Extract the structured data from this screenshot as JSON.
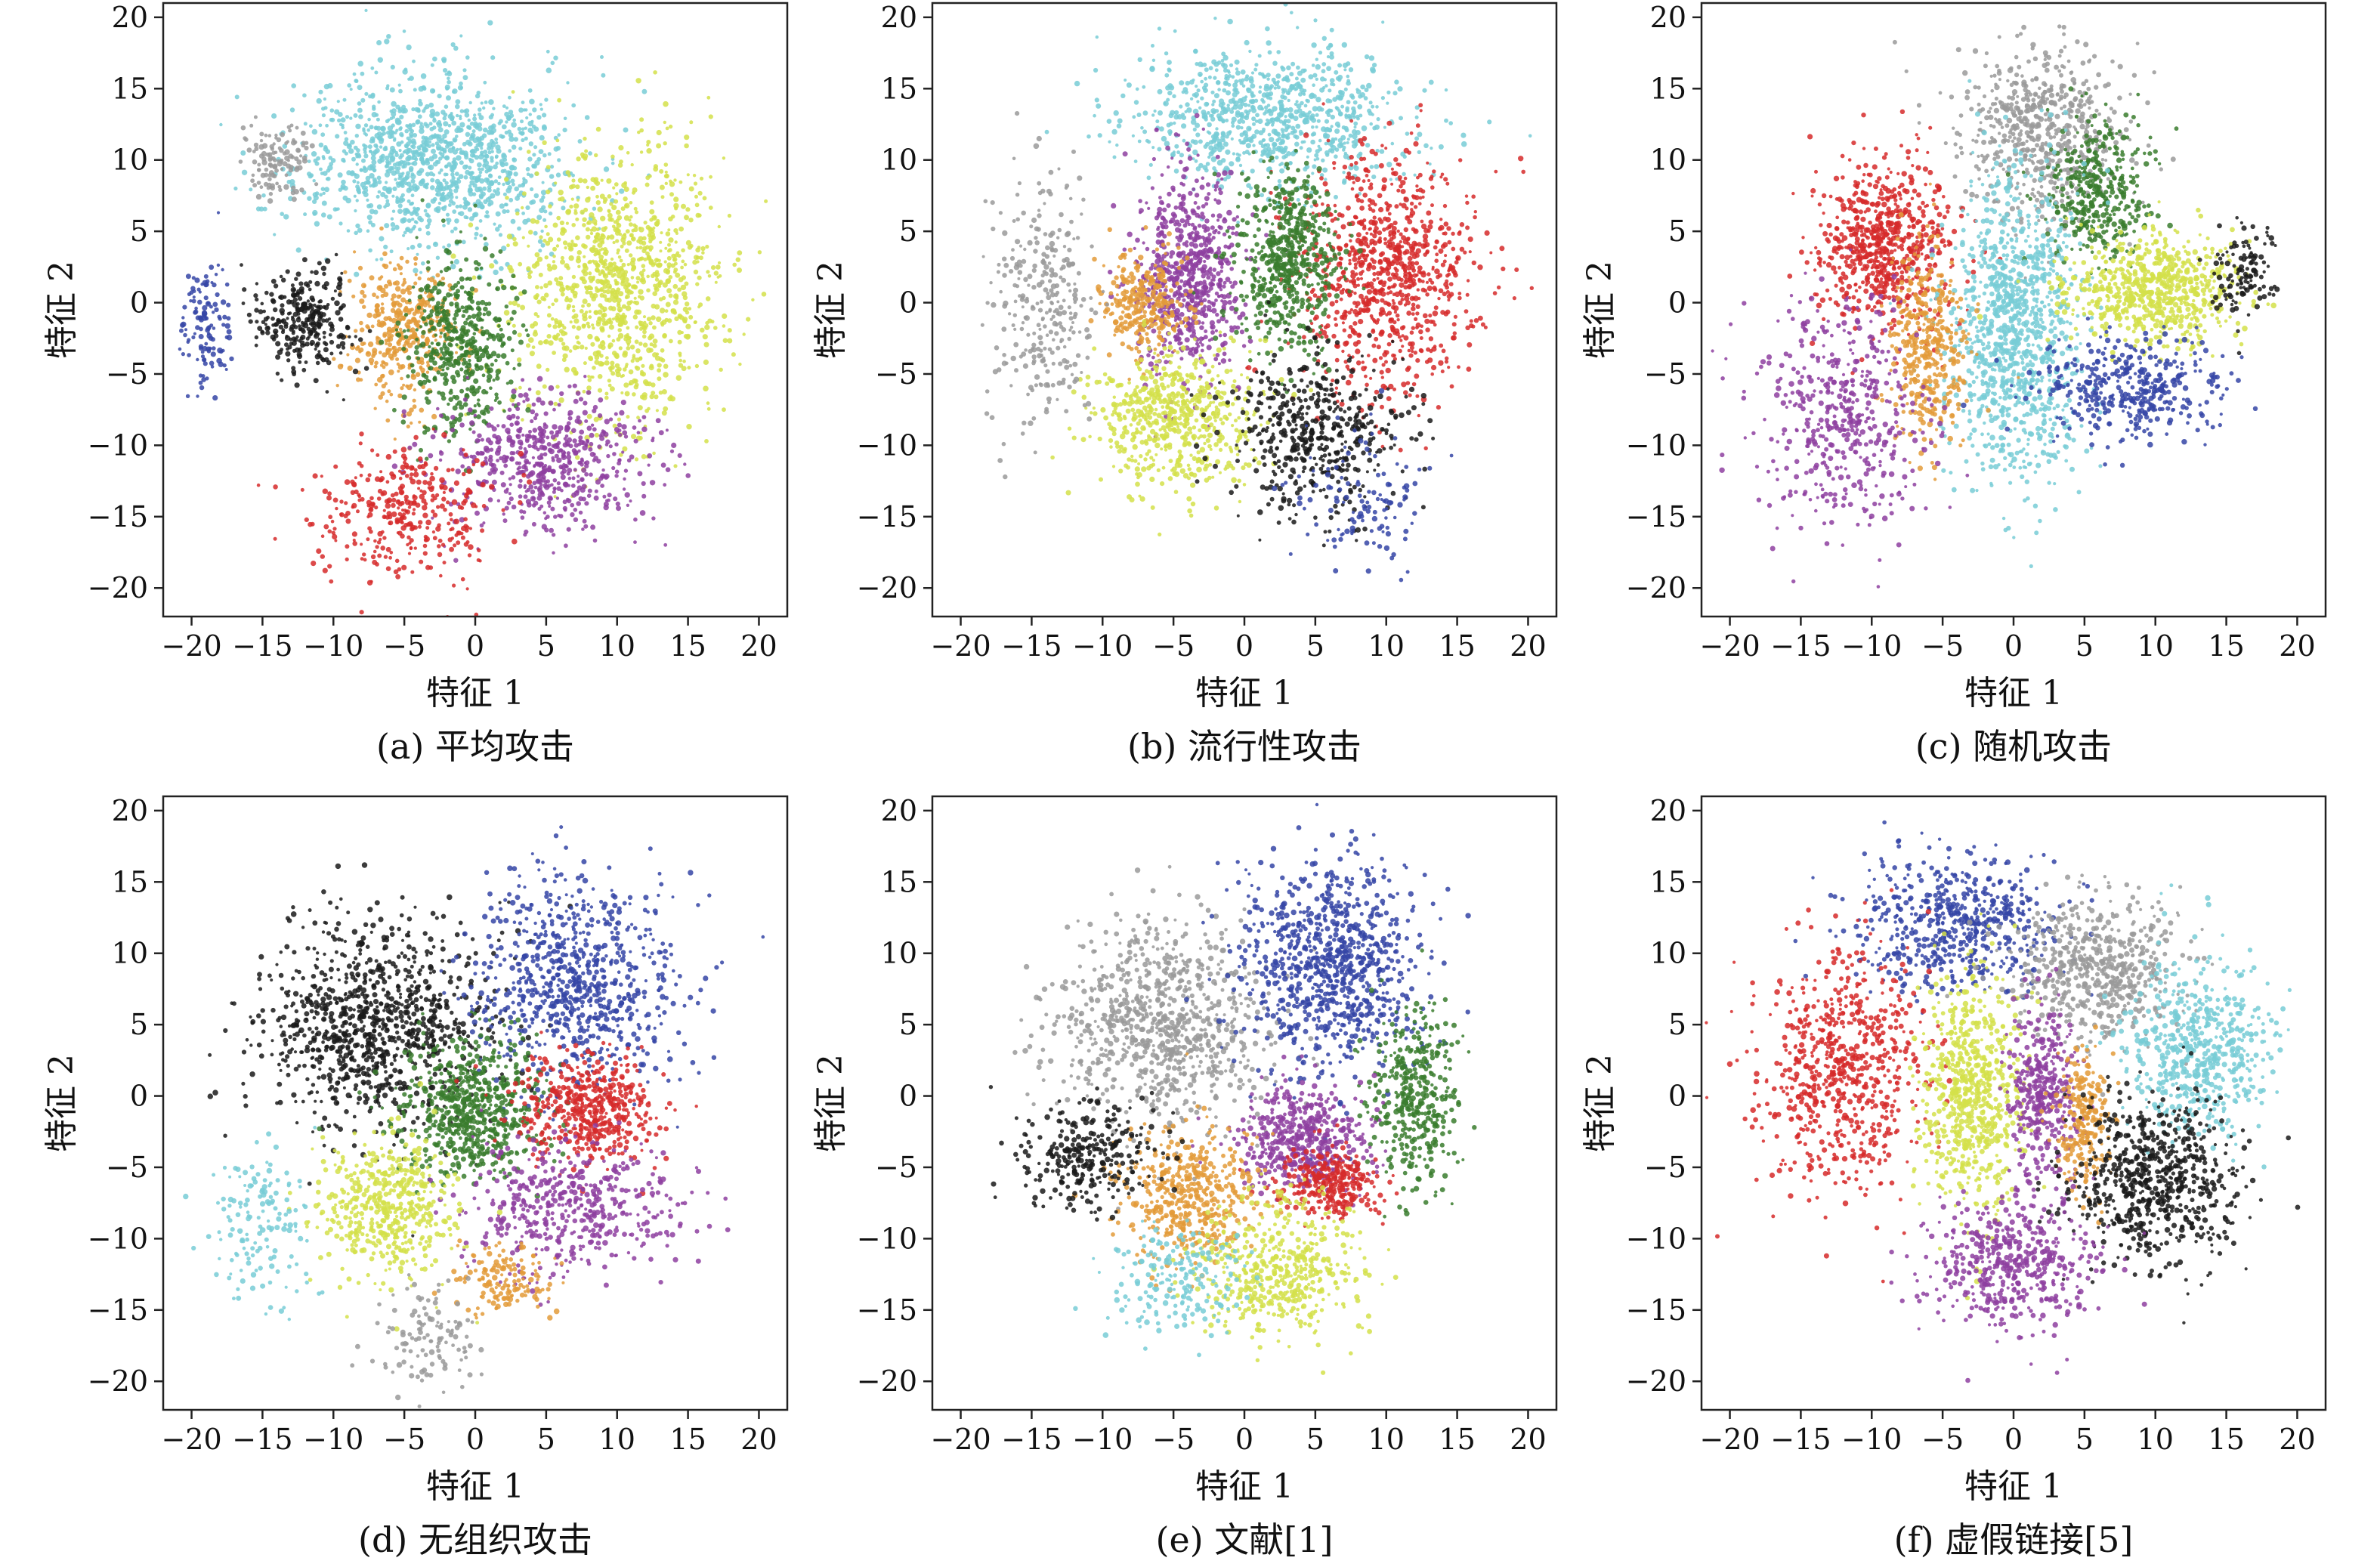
{
  "figure": {
    "xlabel": "特征 1",
    "ylabel": "特征 2",
    "ticks": [
      "−20",
      "−15",
      "−10",
      "−5",
      "0",
      "5",
      "10",
      "15",
      "20"
    ]
  },
  "chart_data": [
    {
      "type": "scatter",
      "caption": "(a) 平均攻击",
      "xlabel": "特征 1",
      "ylabel": "特征 2",
      "xlim": [
        -22,
        22
      ],
      "ylim": [
        -22,
        21
      ],
      "xticks": [
        -20,
        -15,
        -10,
        -5,
        0,
        5,
        10,
        15,
        20
      ],
      "yticks": [
        -20,
        -15,
        -10,
        -5,
        0,
        5,
        10,
        15,
        20
      ],
      "clusters": [
        {
          "color": "#78ccd6",
          "center": [
            -3,
            10
          ],
          "spread": [
            8,
            5
          ],
          "n": 1200
        },
        {
          "color": "#d4e04a",
          "center": [
            10,
            1
          ],
          "spread": [
            6,
            8
          ],
          "n": 1100
        },
        {
          "color": "#e39b3a",
          "center": [
            -5,
            -2
          ],
          "spread": [
            3,
            4
          ],
          "n": 400
        },
        {
          "color": "#3a7d2e",
          "center": [
            -1,
            -3
          ],
          "spread": [
            3,
            5
          ],
          "n": 500
        },
        {
          "color": "#8e3fa0",
          "center": [
            5,
            -11
          ],
          "spread": [
            6,
            4
          ],
          "n": 600
        },
        {
          "color": "#1a1a1a",
          "center": [
            -12,
            -1
          ],
          "spread": [
            3,
            3
          ],
          "n": 300
        },
        {
          "color": "#d62a2a",
          "center": [
            -5,
            -15
          ],
          "spread": [
            5,
            4
          ],
          "n": 350
        },
        {
          "color": "#9a9a9a",
          "center": [
            -14,
            10
          ],
          "spread": [
            2,
            2
          ],
          "n": 120
        },
        {
          "color": "#3545a6",
          "center": [
            -19,
            -2
          ],
          "spread": [
            1.5,
            4
          ],
          "n": 120
        }
      ]
    },
    {
      "type": "scatter",
      "caption": "(b) 流行性攻击",
      "xlabel": "特征 1",
      "ylabel": "特征 2",
      "xlim": [
        -22,
        22
      ],
      "ylim": [
        -22,
        21
      ],
      "xticks": [
        -20,
        -15,
        -10,
        -5,
        0,
        5,
        10,
        15,
        20
      ],
      "yticks": [
        -20,
        -15,
        -10,
        -5,
        0,
        5,
        10,
        15,
        20
      ],
      "clusters": [
        {
          "color": "#78ccd6",
          "center": [
            2,
            13
          ],
          "spread": [
            8,
            4
          ],
          "n": 900
        },
        {
          "color": "#d62a2a",
          "center": [
            10,
            2
          ],
          "spread": [
            5,
            7
          ],
          "n": 900
        },
        {
          "color": "#8e3fa0",
          "center": [
            -4,
            2
          ],
          "spread": [
            3,
            6
          ],
          "n": 700
        },
        {
          "color": "#3a7d2e",
          "center": [
            3,
            3
          ],
          "spread": [
            3,
            5
          ],
          "n": 600
        },
        {
          "color": "#e39b3a",
          "center": [
            -7,
            0
          ],
          "spread": [
            2.5,
            3
          ],
          "n": 300
        },
        {
          "color": "#d4e04a",
          "center": [
            -5,
            -8
          ],
          "spread": [
            5,
            4
          ],
          "n": 600
        },
        {
          "color": "#1a1a1a",
          "center": [
            5,
            -9
          ],
          "spread": [
            5,
            5
          ],
          "n": 500
        },
        {
          "color": "#9a9a9a",
          "center": [
            -14,
            0
          ],
          "spread": [
            3,
            7
          ],
          "n": 300
        },
        {
          "color": "#3545a6",
          "center": [
            8,
            -14
          ],
          "spread": [
            4,
            4
          ],
          "n": 120
        }
      ]
    },
    {
      "type": "scatter",
      "caption": "(c) 随机攻击",
      "xlabel": "特征 1",
      "ylabel": "特征 2",
      "xlim": [
        -22,
        22
      ],
      "ylim": [
        -22,
        21
      ],
      "xticks": [
        -20,
        -15,
        -10,
        -5,
        0,
        5,
        10,
        15,
        20
      ],
      "yticks": [
        -20,
        -15,
        -10,
        -5,
        0,
        5,
        10,
        15,
        20
      ],
      "clusters": [
        {
          "color": "#9a9a9a",
          "center": [
            2,
            12
          ],
          "spread": [
            5,
            5
          ],
          "n": 600
        },
        {
          "color": "#d62a2a",
          "center": [
            -9,
            4
          ],
          "spread": [
            4,
            5
          ],
          "n": 700
        },
        {
          "color": "#3a7d2e",
          "center": [
            6,
            8
          ],
          "spread": [
            3,
            4
          ],
          "n": 400
        },
        {
          "color": "#78ccd6",
          "center": [
            0,
            -2
          ],
          "spread": [
            4,
            9
          ],
          "n": 1100
        },
        {
          "color": "#d4e04a",
          "center": [
            10,
            1
          ],
          "spread": [
            5,
            3
          ],
          "n": 700
        },
        {
          "color": "#e39b3a",
          "center": [
            -6,
            -3
          ],
          "spread": [
            2.5,
            6
          ],
          "n": 400
        },
        {
          "color": "#8e3fa0",
          "center": [
            -12,
            -8
          ],
          "spread": [
            5,
            7
          ],
          "n": 500
        },
        {
          "color": "#3545a6",
          "center": [
            8,
            -6
          ],
          "spread": [
            5,
            3
          ],
          "n": 400
        },
        {
          "color": "#1a1a1a",
          "center": [
            16,
            2
          ],
          "spread": [
            2,
            3
          ],
          "n": 120
        }
      ]
    },
    {
      "type": "scatter",
      "caption": "(d) 无组织攻击",
      "xlabel": "特征 1",
      "ylabel": "特征 2",
      "xlim": [
        -22,
        22
      ],
      "ylim": [
        -22,
        21
      ],
      "xticks": [
        -20,
        -15,
        -10,
        -5,
        0,
        5,
        10,
        15,
        20
      ],
      "yticks": [
        -20,
        -15,
        -10,
        -5,
        0,
        5,
        10,
        15,
        20
      ],
      "clusters": [
        {
          "color": "#1a1a1a",
          "center": [
            -7,
            5
          ],
          "spread": [
            7,
            6
          ],
          "n": 1000
        },
        {
          "color": "#3545a6",
          "center": [
            7,
            8
          ],
          "spread": [
            6,
            6
          ],
          "n": 800
        },
        {
          "color": "#3a7d2e",
          "center": [
            0,
            -1
          ],
          "spread": [
            4,
            4
          ],
          "n": 700
        },
        {
          "color": "#d62a2a",
          "center": [
            8,
            -1
          ],
          "spread": [
            4,
            3
          ],
          "n": 500
        },
        {
          "color": "#8e3fa0",
          "center": [
            7,
            -8
          ],
          "spread": [
            6,
            4
          ],
          "n": 500
        },
        {
          "color": "#d4e04a",
          "center": [
            -6,
            -8
          ],
          "spread": [
            4,
            4
          ],
          "n": 500
        },
        {
          "color": "#e39b3a",
          "center": [
            2,
            -13
          ],
          "spread": [
            3,
            2
          ],
          "n": 150
        },
        {
          "color": "#78ccd6",
          "center": [
            -15,
            -9
          ],
          "spread": [
            3,
            5
          ],
          "n": 150
        },
        {
          "color": "#9a9a9a",
          "center": [
            -3,
            -17
          ],
          "spread": [
            3,
            3
          ],
          "n": 120
        }
      ]
    },
    {
      "type": "scatter",
      "caption": "(e) 文献[1]",
      "xlabel": "特征 1",
      "ylabel": "特征 2",
      "xlim": [
        -22,
        22
      ],
      "ylim": [
        -22,
        21
      ],
      "xticks": [
        -20,
        -15,
        -10,
        -5,
        0,
        5,
        10,
        15,
        20
      ],
      "yticks": [
        -20,
        -15,
        -10,
        -5,
        0,
        5,
        10,
        15,
        20
      ],
      "clusters": [
        {
          "color": "#9a9a9a",
          "center": [
            -6,
            5
          ],
          "spread": [
            6,
            6
          ],
          "n": 900
        },
        {
          "color": "#3545a6",
          "center": [
            6,
            9
          ],
          "spread": [
            5,
            6
          ],
          "n": 900
        },
        {
          "color": "#3a7d2e",
          "center": [
            12,
            0
          ],
          "spread": [
            2.5,
            5
          ],
          "n": 400
        },
        {
          "color": "#8e3fa0",
          "center": [
            4,
            -3
          ],
          "spread": [
            4,
            3
          ],
          "n": 500
        },
        {
          "color": "#d62a2a",
          "center": [
            6,
            -6
          ],
          "spread": [
            3,
            2
          ],
          "n": 300
        },
        {
          "color": "#e39b3a",
          "center": [
            -4,
            -7
          ],
          "spread": [
            4,
            4
          ],
          "n": 500
        },
        {
          "color": "#d4e04a",
          "center": [
            2,
            -12
          ],
          "spread": [
            5,
            4
          ],
          "n": 500
        },
        {
          "color": "#1a1a1a",
          "center": [
            -11,
            -4
          ],
          "spread": [
            4,
            3
          ],
          "n": 300
        },
        {
          "color": "#78ccd6",
          "center": [
            -5,
            -13
          ],
          "spread": [
            4,
            3
          ],
          "n": 200
        }
      ]
    },
    {
      "type": "scatter",
      "caption": "(f) 虚假链接[5]",
      "xlabel": "特征 1",
      "ylabel": "特征 2",
      "xlim": [
        -22,
        22
      ],
      "ylim": [
        -22,
        21
      ],
      "xticks": [
        -20,
        -15,
        -10,
        -5,
        0,
        5,
        10,
        15,
        20
      ],
      "yticks": [
        -20,
        -15,
        -10,
        -5,
        0,
        5,
        10,
        15,
        20
      ],
      "clusters": [
        {
          "color": "#3545a6",
          "center": [
            -4,
            12
          ],
          "spread": [
            6,
            4
          ],
          "n": 600
        },
        {
          "color": "#9a9a9a",
          "center": [
            6,
            9
          ],
          "spread": [
            5,
            4
          ],
          "n": 600
        },
        {
          "color": "#d62a2a",
          "center": [
            -12,
            2
          ],
          "spread": [
            5,
            7
          ],
          "n": 700
        },
        {
          "color": "#d4e04a",
          "center": [
            -3,
            0
          ],
          "spread": [
            3,
            7
          ],
          "n": 700
        },
        {
          "color": "#8e3fa0",
          "center": [
            2,
            0
          ],
          "spread": [
            2,
            5
          ],
          "n": 400
        },
        {
          "color": "#e39b3a",
          "center": [
            5,
            -2
          ],
          "spread": [
            1.5,
            4
          ],
          "n": 250
        },
        {
          "color": "#78ccd6",
          "center": [
            13,
            3
          ],
          "spread": [
            4,
            5
          ],
          "n": 600
        },
        {
          "color": "#1a1a1a",
          "center": [
            10,
            -6
          ],
          "spread": [
            5,
            5
          ],
          "n": 700
        },
        {
          "color": "#8e3fa0",
          "center": [
            0,
            -12
          ],
          "spread": [
            5,
            4
          ],
          "n": 500
        }
      ]
    }
  ]
}
